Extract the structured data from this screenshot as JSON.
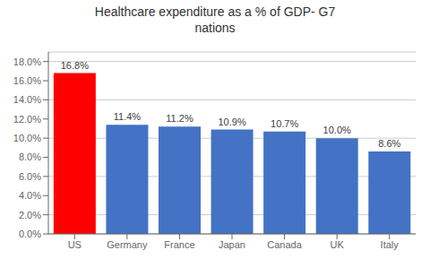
{
  "chart_data": {
    "type": "bar",
    "title": "Healthcare expenditure as a % of GDP- G7\nnations",
    "categories": [
      "US",
      "Germany",
      "France",
      "Japan",
      "Canada",
      "UK",
      "Italy"
    ],
    "values": [
      16.8,
      11.4,
      11.2,
      10.9,
      10.7,
      10.0,
      8.6
    ],
    "value_labels": [
      "16.8%",
      "11.4%",
      "11.2%",
      "10.9%",
      "10.7%",
      "10.0%",
      "8.6%"
    ],
    "colors": [
      "#FF0000",
      "#4472C4",
      "#4472C4",
      "#4472C4",
      "#4472C4",
      "#4472C4",
      "#4472C4"
    ],
    "data_labels": true,
    "ylim": [
      0,
      19
    ],
    "yticks": [
      {
        "value": 0,
        "label": "0.0%"
      },
      {
        "value": 2,
        "label": "2.0%"
      },
      {
        "value": 4,
        "label": "4.0%"
      },
      {
        "value": 6,
        "label": "6.0%"
      },
      {
        "value": 8,
        "label": "8.0%"
      },
      {
        "value": 10,
        "label": "10.0%"
      },
      {
        "value": 12,
        "label": "12.0%"
      },
      {
        "value": 14,
        "label": "14.0%"
      },
      {
        "value": 16,
        "label": "16.0%"
      },
      {
        "value": 18,
        "label": "18.0%"
      }
    ],
    "grid": true
  }
}
